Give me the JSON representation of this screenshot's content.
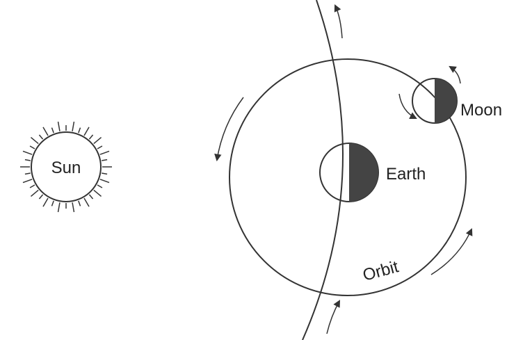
{
  "labels": {
    "sun": "Sun",
    "earth": "Earth",
    "moon": "Moon",
    "orbit": "Orbit"
  }
}
